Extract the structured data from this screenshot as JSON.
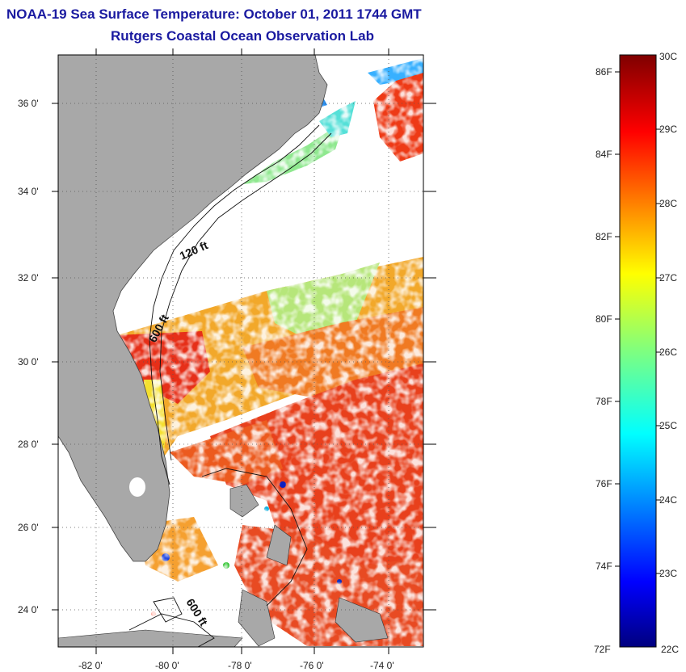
{
  "title": {
    "line1": "NOAA-19 Sea Surface Temperature:  October 01, 2011 1744 GMT",
    "line2": "Rutgers Coastal Ocean Observation Lab"
  },
  "map": {
    "lon_range": [
      -83,
      -73
    ],
    "lat_range": [
      23,
      37
    ],
    "x_tick_labels": [
      "-82 0'",
      "-80 0'",
      "-78 0'",
      "-76 0'",
      "-74 0'"
    ],
    "y_tick_labels": [
      "24 0'",
      "26 0'",
      "28 0'",
      "30 0'",
      "32 0'",
      "34 0'",
      "36 0'"
    ],
    "land_color": "#a8a8a8",
    "graticule": "dotted",
    "contour_labels": [
      "120 ft",
      "600 ft",
      "600 ft"
    ]
  },
  "colorbar": {
    "celsius_labels": [
      "30C",
      "29C",
      "28C",
      "27C",
      "26C",
      "25C",
      "24C",
      "23C",
      "22C"
    ],
    "fahrenheit_labels": [
      "86F",
      "84F",
      "82F",
      "80F",
      "78F",
      "76F",
      "74F",
      "72F"
    ],
    "celsius_range": [
      22,
      30
    ],
    "fahrenheit_range": [
      72,
      86
    ],
    "colormap": "jet"
  }
}
